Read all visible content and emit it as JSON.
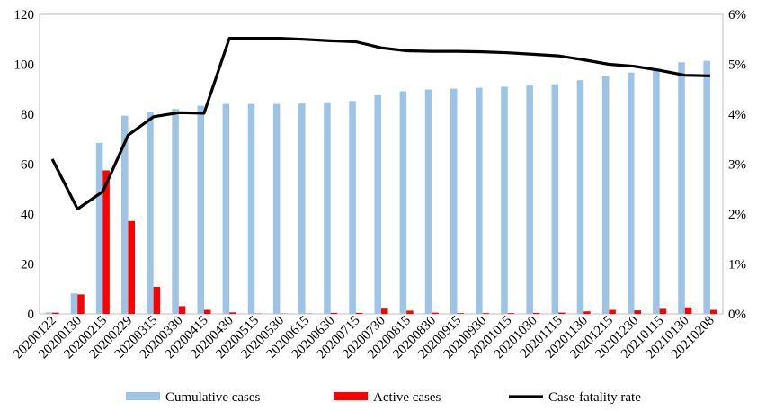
{
  "chart_data": {
    "type": "bar",
    "categories": [
      "20200122",
      "20200130",
      "20200215",
      "20200229",
      "20200315",
      "20200330",
      "20200415",
      "20200430",
      "20200515",
      "20200530",
      "20200615",
      "20200630",
      "20200715",
      "20200730",
      "20200815",
      "20200830",
      "20200915",
      "20200930",
      "20201015",
      "20201030",
      "20201115",
      "20201130",
      "20201215",
      "20201230",
      "20210115",
      "20210130",
      "20210208"
    ],
    "series": [
      {
        "name": "Cumulative cases",
        "axis": "left",
        "kind": "bar",
        "color": "#9dc3e6",
        "values": [
          0.6,
          8.2,
          68.5,
          79.4,
          80.9,
          82.1,
          83.4,
          84.1,
          84.1,
          84.1,
          84.4,
          84.8,
          85.3,
          87.6,
          89.2,
          89.9,
          90.2,
          90.6,
          91.0,
          91.5,
          92.0,
          93.6,
          95.3,
          96.7,
          98.0,
          100.8,
          101.4
        ]
      },
      {
        "name": "Active cases",
        "axis": "left",
        "kind": "bar",
        "color": "#ff0000",
        "values": [
          0.5,
          7.8,
          57.5,
          37.2,
          10.8,
          3.1,
          1.6,
          0.6,
          0.1,
          0.1,
          0.1,
          0.4,
          0.4,
          2.1,
          1.3,
          0.5,
          0.3,
          0.3,
          0.3,
          0.4,
          0.5,
          1.0,
          1.6,
          1.4,
          2.0,
          2.6,
          1.6
        ]
      },
      {
        "name": "Case-fatality rate",
        "axis": "right",
        "kind": "line",
        "color": "#000000",
        "values": [
          3.1,
          2.1,
          2.45,
          3.58,
          3.95,
          4.03,
          4.02,
          5.52,
          5.52,
          5.52,
          5.5,
          5.47,
          5.45,
          5.33,
          5.27,
          5.26,
          5.26,
          5.25,
          5.23,
          5.2,
          5.17,
          5.09,
          5.0,
          4.96,
          4.88,
          4.78,
          4.77
        ]
      }
    ],
    "yleft": {
      "min": 0,
      "max": 120,
      "ticks": [
        0,
        20,
        40,
        60,
        80,
        100,
        120
      ]
    },
    "yright": {
      "min": 0,
      "max": 6,
      "ticks": [
        "0%",
        "1%",
        "2%",
        "3%",
        "4%",
        "5%",
        "6%"
      ]
    },
    "grid": false,
    "legend_position": "bottom"
  }
}
